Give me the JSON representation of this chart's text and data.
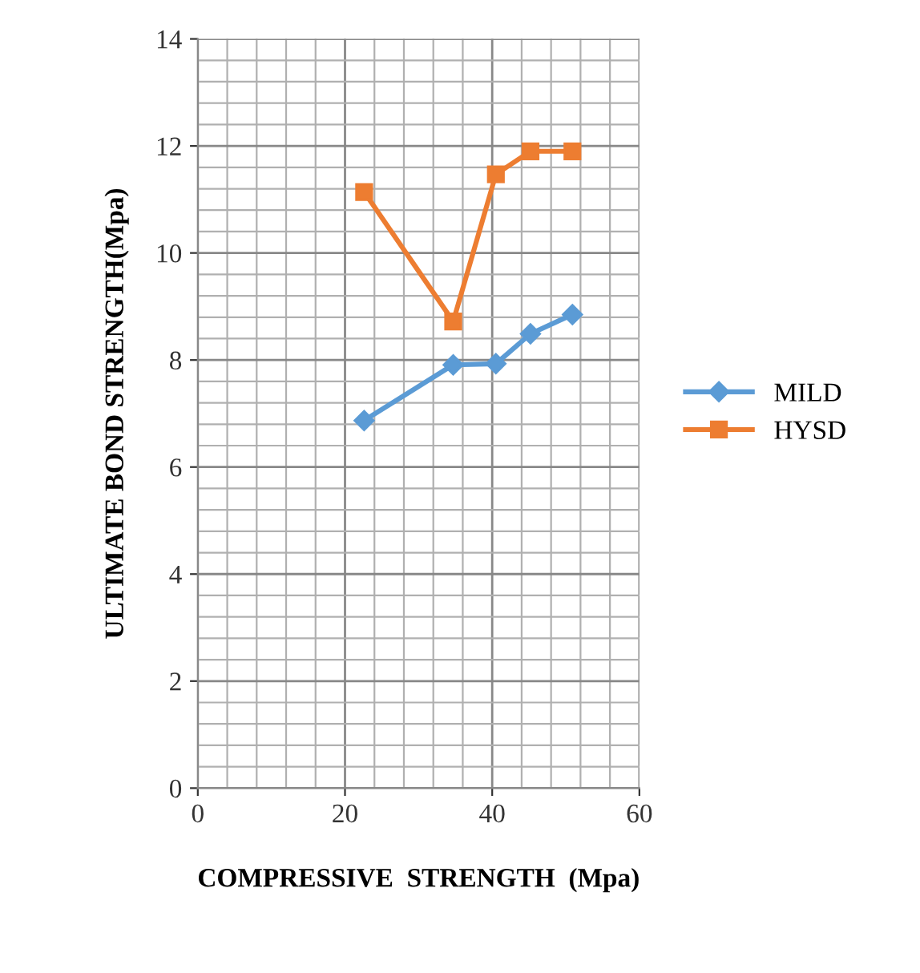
{
  "chart_data": {
    "type": "line",
    "xlabel": "COMPRESSIVE  STRENGTH  (Mpa)",
    "ylabel": "ULTIMATE BOND STRENGTH(Mpa)",
    "series": [
      {
        "name": "MILD",
        "color": "#5b9bd5",
        "marker": "diamond",
        "x": [
          22.6,
          34.7,
          40.5,
          45.2,
          50.9
        ],
        "values": [
          6.87,
          7.91,
          7.93,
          8.49,
          8.85
        ]
      },
      {
        "name": "HYSD",
        "color": "#ed7d31",
        "marker": "square",
        "x": [
          22.6,
          34.7,
          40.5,
          45.2,
          50.9
        ],
        "values": [
          11.14,
          8.72,
          11.47,
          11.9,
          11.9
        ]
      }
    ],
    "xlim": [
      0,
      60
    ],
    "xticks": [
      0,
      20,
      40,
      60
    ],
    "ylim": [
      0,
      14
    ],
    "yticks": [
      0,
      2,
      4,
      6,
      8,
      10,
      12,
      14
    ],
    "grid": true,
    "legend": "right"
  }
}
